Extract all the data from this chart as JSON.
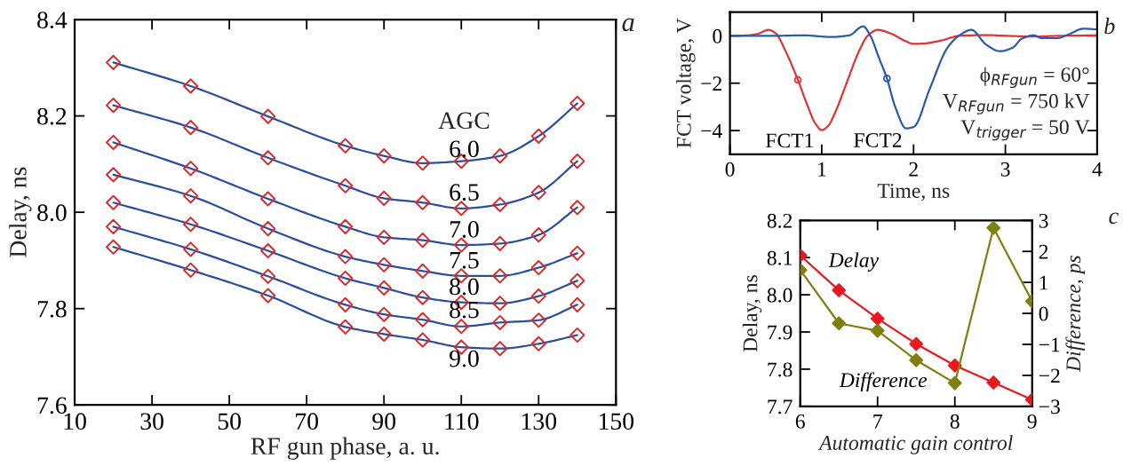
{
  "chart_data": [
    {
      "type": "line",
      "xlabel": "RF gun phase, a. u.",
      "ylabel": "Delay, ns",
      "legend_title": "AGC",
      "annotations": [
        "a"
      ],
      "marker": "diamond",
      "line_style": "solid",
      "x": [
        20,
        40,
        60,
        80,
        90,
        100,
        110,
        120,
        130,
        140
      ],
      "xlim": [
        10,
        150
      ],
      "xticks": [
        10,
        30,
        50,
        70,
        90,
        110,
        130,
        150
      ],
      "ylim": [
        7.6,
        8.4
      ],
      "yticks": [
        {
          "value": 7.6,
          "label": "7.6"
        },
        {
          "value": 7.8,
          "label": "7.8"
        },
        {
          "value": 8,
          "label": "8.0"
        },
        {
          "value": 8.2,
          "label": "8.2"
        },
        {
          "value": 8.4,
          "label": "8.4"
        }
      ],
      "series": [
        {
          "name": "6.0",
          "color": "#2a4f9d",
          "colors": [
            "#d62a2a",
            "#d62a2a",
            "#d62a2a",
            "#d62a2a",
            "#d62a2a",
            "#d62a2a",
            "#d62a2a",
            "#d62a2a",
            "#d62a2a",
            "#d62a2a"
          ],
          "values": [
            8.311,
            8.262,
            8.199,
            8.138,
            8.117,
            8.102,
            8.106,
            8.117,
            8.158,
            8.226
          ]
        },
        {
          "name": "6.5",
          "color": "#2a4f9d",
          "colors": [
            "#d62a2a",
            "#d62a2a",
            "#d62a2a",
            "#d62a2a",
            "#d62a2a",
            "#d62a2a",
            "#d62a2a",
            "#d62a2a",
            "#d62a2a",
            "#d62a2a"
          ],
          "values": [
            8.222,
            8.176,
            8.113,
            8.055,
            8.029,
            8.02,
            8.008,
            8.016,
            8.041,
            8.106
          ]
        },
        {
          "name": "7.0",
          "color": "#2a4f9d",
          "colors": [
            "#d62a2a",
            "#d62a2a",
            "#d62a2a",
            "#d62a2a",
            "#d62a2a",
            "#d62a2a",
            "#d62a2a",
            "#d62a2a",
            "#d62a2a",
            "#d62a2a"
          ],
          "values": [
            8.145,
            8.091,
            8.028,
            7.97,
            7.948,
            7.942,
            7.932,
            7.935,
            7.953,
            8.01
          ]
        },
        {
          "name": "7.5",
          "color": "#2a4f9d",
          "colors": [
            "#d62a2a",
            "#d62a2a",
            "#d62a2a",
            "#d62a2a",
            "#d62a2a",
            "#d62a2a",
            "#d62a2a",
            "#d62a2a",
            "#d62a2a",
            "#d62a2a"
          ],
          "values": [
            8.078,
            8.034,
            7.966,
            7.908,
            7.891,
            7.878,
            7.868,
            7.868,
            7.885,
            7.915
          ]
        },
        {
          "name": "8.0",
          "color": "#2a4f9d",
          "colors": [
            "#d62a2a",
            "#d62a2a",
            "#d62a2a",
            "#d62a2a",
            "#d62a2a",
            "#d62a2a",
            "#d62a2a",
            "#d62a2a",
            "#d62a2a",
            "#d62a2a"
          ],
          "values": [
            8.02,
            7.975,
            7.92,
            7.863,
            7.843,
            7.823,
            7.813,
            7.811,
            7.826,
            7.858
          ]
        },
        {
          "name": "8.5",
          "color": "#2a4f9d",
          "colors": [
            "#d62a2a",
            "#d62a2a",
            "#d62a2a",
            "#d62a2a",
            "#d62a2a",
            "#d62a2a",
            "#d62a2a",
            "#d62a2a",
            "#d62a2a",
            "#d62a2a"
          ],
          "values": [
            7.97,
            7.923,
            7.867,
            7.808,
            7.788,
            7.777,
            7.763,
            7.771,
            7.776,
            7.808
          ]
        },
        {
          "name": "9.0",
          "color": "#2a4f9d",
          "colors": [
            "#d62a2a",
            "#d62a2a",
            "#d62a2a",
            "#d62a2a",
            "#d62a2a",
            "#d62a2a",
            "#d62a2a",
            "#d62a2a",
            "#d62a2a",
            "#d62a2a"
          ],
          "values": [
            7.928,
            7.88,
            7.827,
            7.762,
            7.747,
            7.735,
            7.72,
            7.717,
            7.727,
            7.745
          ]
        }
      ]
    },
    {
      "type": "line",
      "xlabel": "Time, ns",
      "ylabel": "FCT voltage, V",
      "annotations": [
        "b",
        "ϕ$_{RFgun}$ = 60°",
        "V$_{RFgun}$ = 750 kV",
        "V$_{trigger}$ = 50 V"
      ],
      "line_style": "solid",
      "xlim": [
        0,
        4
      ],
      "xticks": [
        0,
        1,
        2,
        3,
        4
      ],
      "ylim": [
        -5,
        1
      ],
      "yticks": [
        {
          "value": -4,
          "label": "−4"
        },
        {
          "value": -2,
          "label": "−2"
        },
        0
      ],
      "series": [
        {
          "name": "FCT1",
          "color": "#e03434",
          "x": [
            0,
            0.2,
            0.3,
            0.42,
            0.5,
            0.6,
            0.74,
            0.85,
            0.93,
            1.0,
            1.07,
            1.15,
            1.27,
            1.4,
            1.5,
            1.61,
            1.75,
            1.9,
            2.0,
            2.1,
            2.3,
            2.5,
            2.8,
            3.0,
            3.3,
            3.6,
            4.0
          ],
          "values": [
            0,
            0.02,
            0.08,
            0.25,
            0.1,
            -0.6,
            -1.86,
            -3.0,
            -3.7,
            -3.98,
            -3.8,
            -3.2,
            -2.0,
            -0.7,
            0.0,
            0.25,
            0.1,
            -0.2,
            -0.34,
            -0.33,
            -0.2,
            0.0,
            0.03,
            0.0,
            -0.03,
            0.0,
            0.02
          ]
        },
        {
          "name": "FCT2",
          "color": "#2a5aa8",
          "x": [
            0,
            0.5,
            0.8,
            1.1,
            1.3,
            1.45,
            1.53,
            1.62,
            1.71,
            1.8,
            1.92,
            2.0,
            2.18,
            2.37,
            2.5,
            2.63,
            2.79,
            2.94,
            3.08,
            3.18,
            3.31,
            3.4,
            3.56,
            3.69,
            3.85,
            4.0
          ],
          "values": [
            0,
            0.0,
            0.02,
            -0.05,
            0.02,
            0.4,
            0.0,
            -0.9,
            -1.8,
            -3.0,
            -3.91,
            -3.85,
            -2.2,
            -0.5,
            0.02,
            0.25,
            -0.37,
            -0.65,
            -0.5,
            -0.12,
            0.02,
            -0.1,
            -0.1,
            0.06,
            0.3,
            0.27
          ]
        },
        {
          "type": "scatter",
          "marker": "circle",
          "color": "#e03434",
          "x": [
            0.74
          ],
          "values": [
            -1.86
          ]
        },
        {
          "type": "scatter",
          "marker": "circle",
          "color": "#2a5aa8",
          "x": [
            1.71
          ],
          "values": [
            -1.8
          ]
        }
      ]
    },
    {
      "type": "line",
      "xlabel": "Automatic gain control",
      "ylabel": "Delay, ns",
      "y2label": "Difference, ps",
      "annotations": [
        "c"
      ],
      "marker": "diamond",
      "line_style": "solid",
      "x": [
        6,
        6.5,
        7,
        7.5,
        8,
        8.5,
        9
      ],
      "xlim": [
        6,
        9
      ],
      "xticks": [
        6,
        7,
        8,
        9
      ],
      "ylim": [
        7.7,
        8.2
      ],
      "yticks": [
        7.7,
        7.8,
        7.9,
        {
          "value": 8,
          "label": "8.0"
        },
        8.1,
        8.2
      ],
      "y2lim": [
        -3,
        3
      ],
      "y2ticks": [
        {
          "value": -3,
          "label": "−3"
        },
        {
          "value": -2,
          "label": "−2"
        },
        {
          "value": -1,
          "label": "−1"
        },
        0,
        1,
        2,
        3
      ],
      "series": [
        {
          "name": "Delay",
          "color": "#e8191e",
          "values": [
            8.106,
            8.012,
            7.936,
            7.868,
            7.81,
            7.764,
            7.718
          ]
        },
        {
          "name": "Difference",
          "color": "#7f7f12",
          "axis": "y2",
          "values": [
            1.4,
            -0.32,
            -0.56,
            -1.51,
            -2.25,
            2.76,
            0.39
          ]
        }
      ]
    }
  ]
}
